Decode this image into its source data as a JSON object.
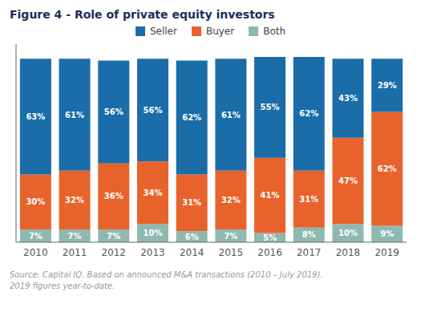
{
  "chart_data": {
    "type": "bar",
    "stacked": true,
    "title": "Figure 4 - Role of private equity investors",
    "annotations": [
      "Source: Capital IQ. Based on announced M&A transactions (2010 – July 2019).",
      "2019 figures year-to-date."
    ],
    "categories": [
      "2010",
      "2011",
      "2012",
      "2013",
      "2014",
      "2015",
      "2016",
      "2017",
      "2018",
      "2019"
    ],
    "series": [
      {
        "name": "Seller",
        "color": "#1a6da8",
        "values": [
          63,
          61,
          56,
          56,
          62,
          61,
          55,
          62,
          43,
          29
        ],
        "value_labels": [
          "63%",
          "61%",
          "56%",
          "56%",
          "62%",
          "61%",
          "55%",
          "62%",
          "43%",
          "29%"
        ]
      },
      {
        "name": "Buyer",
        "color": "#e8632b",
        "values": [
          30,
          32,
          36,
          34,
          31,
          32,
          41,
          31,
          47,
          62
        ],
        "value_labels": [
          "30%",
          "32%",
          "36%",
          "34%",
          "31%",
          "32%",
          "41%",
          "31%",
          "47%",
          "62%"
        ]
      },
      {
        "name": "Both",
        "color": "#8fb8b0",
        "values": [
          7,
          7,
          7,
          10,
          6,
          7,
          5,
          8,
          10,
          9
        ],
        "value_labels": [
          "7%",
          "7%",
          "7%",
          "10%",
          "6%",
          "7%",
          "5%",
          "8%",
          "10%",
          "9%"
        ]
      }
    ],
    "ylim": [
      0,
      108
    ],
    "grid": false,
    "data_labels": true,
    "tick_labels": "x"
  }
}
